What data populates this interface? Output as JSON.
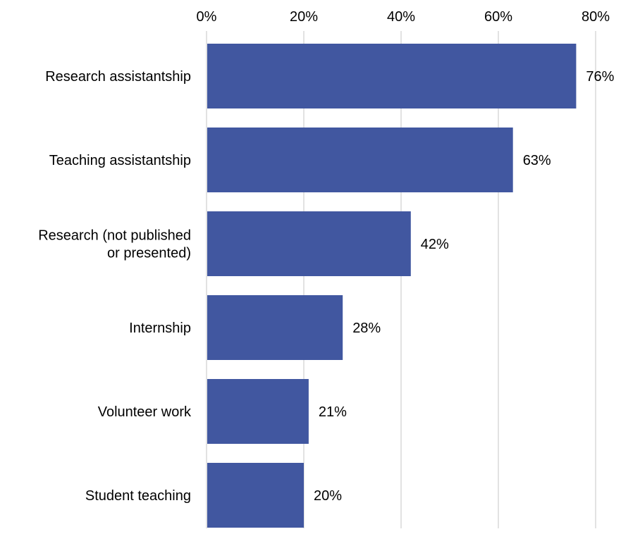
{
  "chart_data": {
    "type": "bar",
    "orientation": "horizontal",
    "categories": [
      [
        "Research assistantship"
      ],
      [
        "Teaching assistantship"
      ],
      [
        "Research (not published",
        "or presented)"
      ],
      [
        "Internship"
      ],
      [
        "Volunteer work"
      ],
      [
        "Student teaching"
      ]
    ],
    "values": [
      76,
      63,
      42,
      28,
      21,
      20
    ],
    "data_labels": [
      "76%",
      "63%",
      "42%",
      "28%",
      "21%",
      "20%"
    ],
    "x_ticks": [
      0,
      20,
      40,
      60,
      80
    ],
    "x_tick_labels": [
      "0%",
      "20%",
      "40%",
      "60%",
      "80%"
    ],
    "xlim": [
      0,
      80
    ],
    "axis_position": "top",
    "grid": true,
    "legend": "none",
    "colors": {
      "bar": "#4157a0",
      "grid": "#d9d9d9",
      "text": "#000000"
    }
  }
}
